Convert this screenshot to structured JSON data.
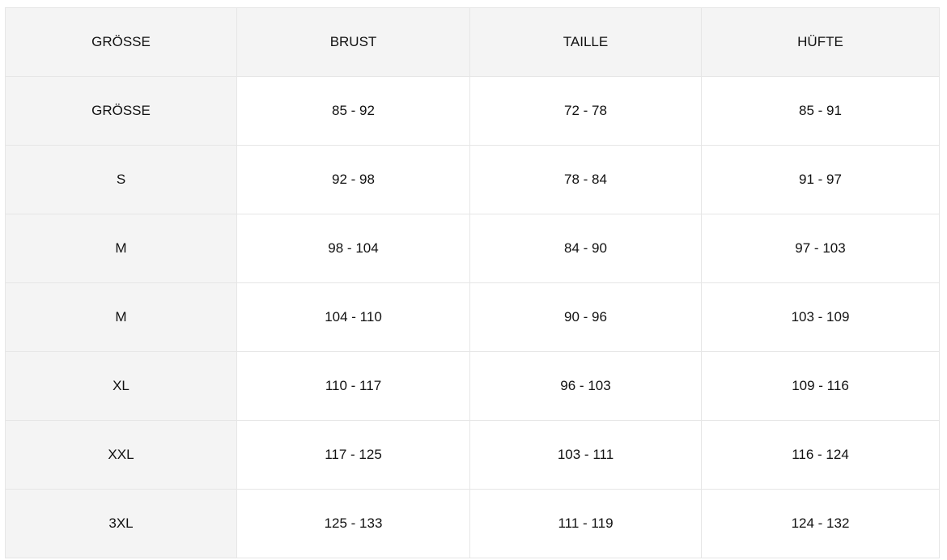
{
  "table": {
    "headers": [
      "GRÖSSE",
      "BRUST",
      "TAILLE",
      "HÜFTE"
    ],
    "rows": [
      [
        "GRÖSSE",
        "85 - 92",
        "72 - 78",
        "85 - 91"
      ],
      [
        "S",
        "92 - 98",
        "78 - 84",
        "91 - 97"
      ],
      [
        "M",
        "98 - 104",
        "84 - 90",
        "97 - 103"
      ],
      [
        "M",
        "104 - 110",
        "90 - 96",
        "103 - 109"
      ],
      [
        "XL",
        "110 - 117",
        "96 - 103",
        "109 - 116"
      ],
      [
        "XXL",
        "117 - 125",
        "103 - 111",
        "116 - 124"
      ],
      [
        "3XL",
        "125 - 133",
        "111 - 119",
        "124 - 132"
      ]
    ]
  }
}
